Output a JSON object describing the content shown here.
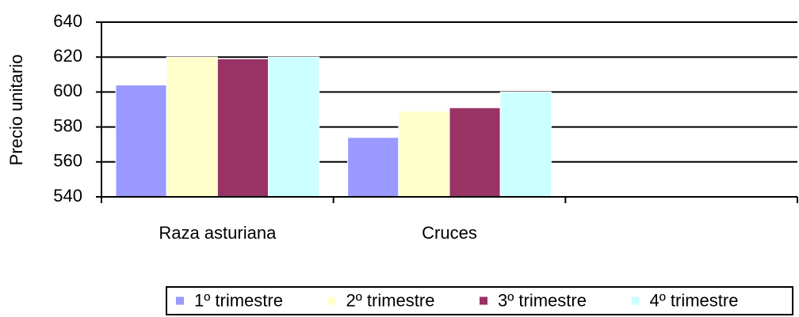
{
  "chart_data": {
    "type": "bar",
    "y_label": "Precio unitario",
    "categories": [
      "Raza asturiana",
      "Cruces",
      null
    ],
    "series": [
      {
        "name": "1º trimestre",
        "color": "#9999ff",
        "values": [
          604,
          574,
          null
        ]
      },
      {
        "name": "2º trimestre",
        "color": "#ffffcc",
        "values": [
          620,
          589,
          null
        ]
      },
      {
        "name": "3º trimestre",
        "color": "#993366",
        "values": [
          619,
          591,
          null
        ]
      },
      {
        "name": "4º trimestre",
        "color": "#ccffff",
        "values": [
          620,
          600,
          null
        ]
      }
    ],
    "ylim": [
      540,
      640
    ],
    "yticks": [
      540,
      560,
      580,
      600,
      620,
      640
    ],
    "grid": true,
    "legend": "bottom"
  }
}
